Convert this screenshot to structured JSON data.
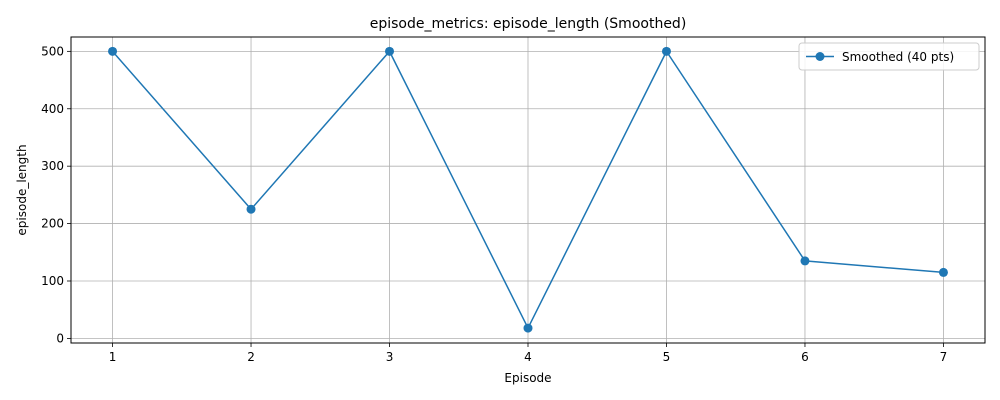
{
  "chart_data": {
    "type": "line",
    "title": "episode_metrics: episode_length (Smoothed)",
    "xlabel": "Episode",
    "ylabel": "episode_length",
    "x": [
      1,
      2,
      3,
      4,
      5,
      6,
      7
    ],
    "xticks": [
      1,
      2,
      3,
      4,
      5,
      6,
      7
    ],
    "yticks": [
      0,
      100,
      200,
      300,
      400,
      500
    ],
    "xlim": [
      0.7,
      7.3
    ],
    "ylim": [
      -8,
      525
    ],
    "grid": true,
    "legend_position": "top-right",
    "series": [
      {
        "name": "Smoothed (40 pts)",
        "values": [
          500,
          225,
          500,
          18,
          500,
          135,
          115
        ],
        "color": "#1f77b4",
        "marker": "circle"
      }
    ]
  }
}
